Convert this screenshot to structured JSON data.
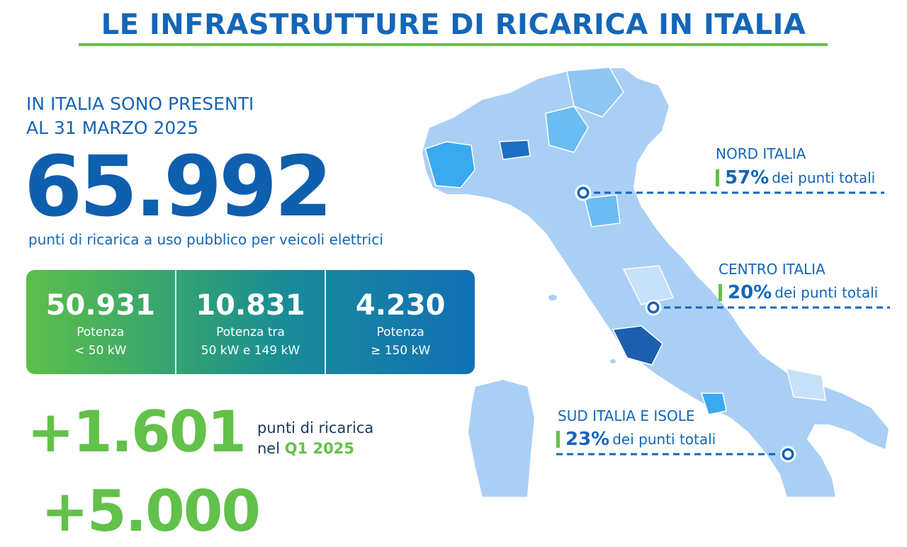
{
  "header": {
    "title": "LE INFRASTRUTTURE DI RICARICA IN ITALIA"
  },
  "intro": {
    "line1": "IN ITALIA SONO PRESENTI",
    "line2": "AL 31 MARZO 2025"
  },
  "total": {
    "value": "65.992",
    "caption": "punti di ricarica a uso pubblico per veicoli elettrici"
  },
  "stats": [
    {
      "value": "50.931",
      "label1": "Potenza",
      "label2": "< 50 kW"
    },
    {
      "value": "10.831",
      "label1": "Potenza tra",
      "label2": "50 kW e 149 kW"
    },
    {
      "value": "4.230",
      "label1": "Potenza",
      "label2": "≥ 150 kW"
    }
  ],
  "growth": {
    "value": "+1.601",
    "text1": "punti di ricarica",
    "text2_prefix": "nel",
    "text2_period": "Q1 2025"
  },
  "regions": [
    {
      "name": "NORD ITALIA",
      "pct": "57%",
      "rest": "dei punti totali"
    },
    {
      "name": "CENTRO ITALIA",
      "pct": "20%",
      "rest": "dei punti totali"
    },
    {
      "name": "SUD ITALIA E ISOLE",
      "pct": "23%",
      "rest": "dei punti totali"
    }
  ],
  "colors": {
    "primary": "#1466b8",
    "accent_green": "#62c14a",
    "map_light": "#aacff5",
    "map_dark": "#1566b8"
  },
  "icons": {
    "map": "italy-map",
    "marker": "location-marker-icon"
  }
}
